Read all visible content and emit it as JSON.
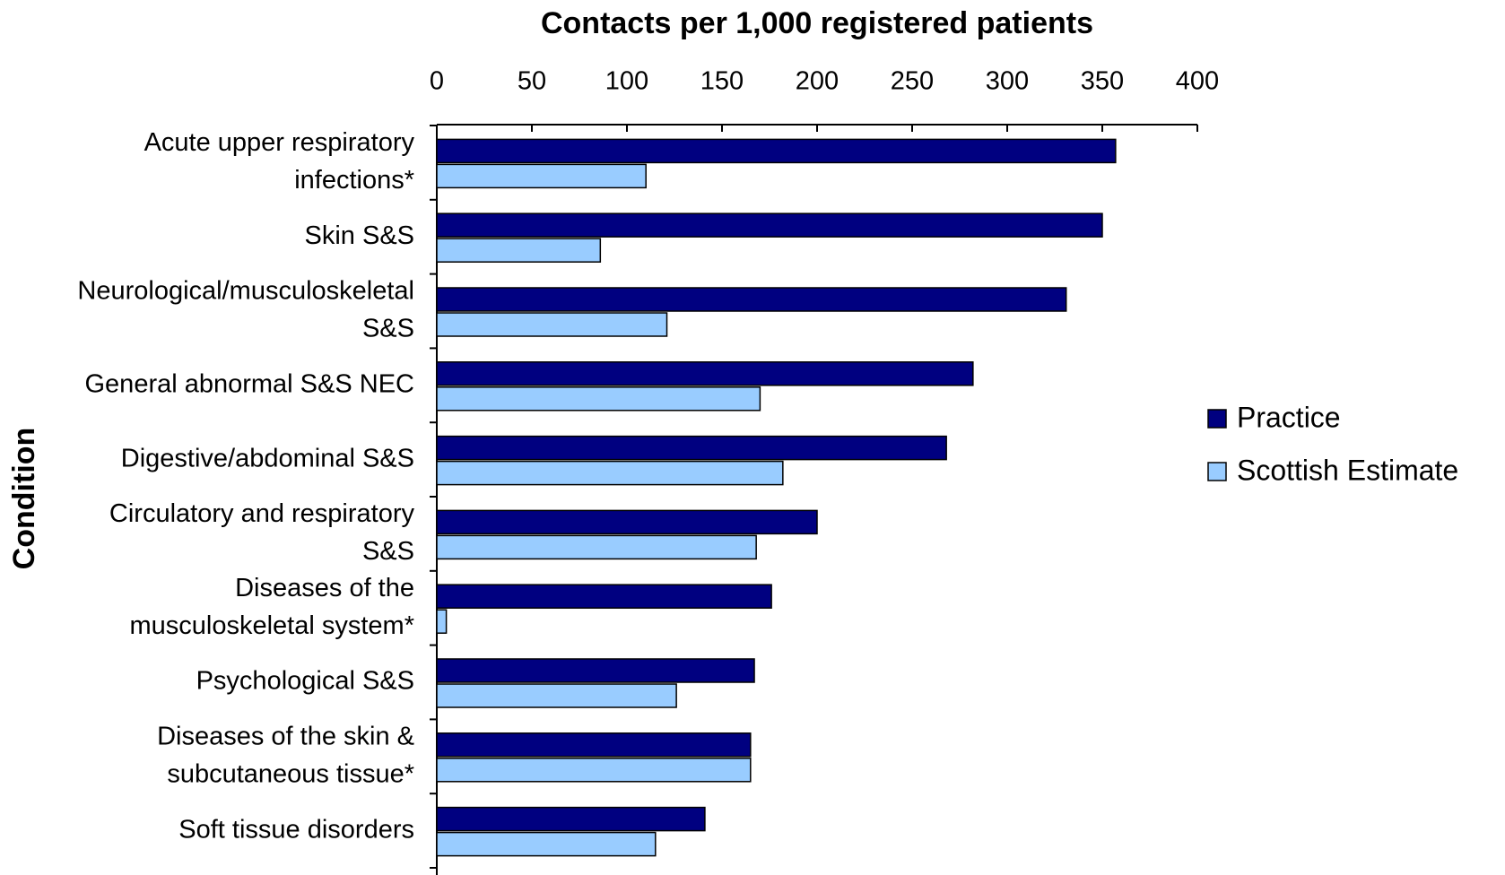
{
  "chart_data": {
    "type": "hbar",
    "title": "Contacts per 1,000 registered patients",
    "y_label": "Condition",
    "categories": [
      [
        "Acute upper respiratory",
        "infections*"
      ],
      [
        "Skin S&S"
      ],
      [
        "Neurological/musculoskeletal",
        "S&S"
      ],
      [
        "General abnormal S&S NEC"
      ],
      [
        "Digestive/abdominal S&S"
      ],
      [
        "Circulatory and respiratory",
        "S&S"
      ],
      [
        "Diseases of the",
        "musculoskeletal system*"
      ],
      [
        "Psychological S&S"
      ],
      [
        "Diseases of the skin &",
        "subcutaneous tissue*"
      ],
      [
        "Soft tissue disorders"
      ]
    ],
    "series": [
      {
        "name": "Practice",
        "color": "#000080",
        "values": [
          357,
          350,
          331,
          282,
          268,
          200,
          176,
          167,
          165,
          141
        ]
      },
      {
        "name": "Scottish Estimate",
        "color": "#99ccff",
        "values": [
          110,
          86,
          121,
          170,
          182,
          168,
          5,
          126,
          165,
          115
        ]
      }
    ],
    "xlim": [
      0,
      400
    ],
    "xticks": [
      0,
      50,
      100,
      150,
      200,
      250,
      300,
      350,
      400
    ],
    "legend": "right"
  }
}
